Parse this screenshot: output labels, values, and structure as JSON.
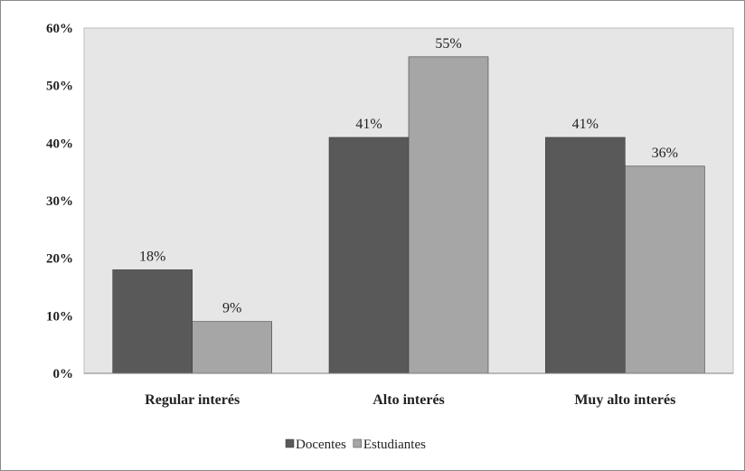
{
  "chart_data": {
    "type": "bar",
    "categories": [
      "Regular interés",
      "Alto interés",
      "Muy alto interés"
    ],
    "series": [
      {
        "name": "Docentes",
        "values": [
          18,
          41,
          41
        ],
        "labels": [
          "18%",
          "41%",
          "41%"
        ],
        "color": "#595959"
      },
      {
        "name": "Estudiantes",
        "values": [
          9,
          55,
          36
        ],
        "labels": [
          "9%",
          "55%",
          "36%"
        ],
        "color": "#a6a6a6"
      }
    ],
    "yticks": [
      "0%",
      "10%",
      "20%",
      "30%",
      "40%",
      "50%",
      "60%"
    ],
    "ylim": [
      0,
      60
    ],
    "grid": false,
    "legend_position": "bottom",
    "plot_background": "#e6e6e6"
  }
}
